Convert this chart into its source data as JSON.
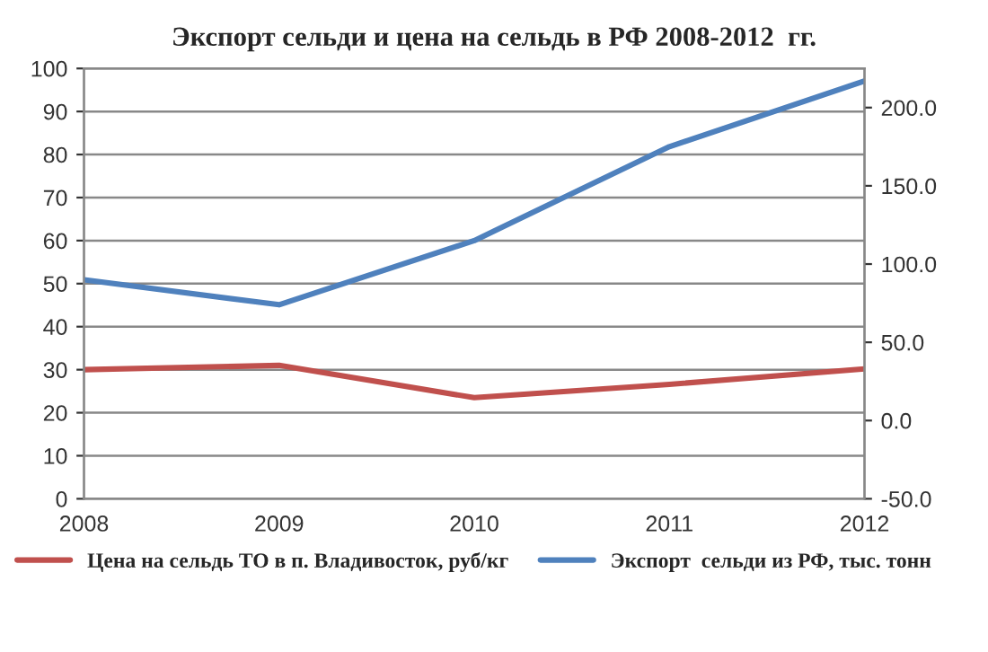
{
  "chart_data": {
    "type": "line",
    "title": "Экспорт сельди и цена на сельдь в РФ 2008-2012  гг.",
    "categories": [
      "2008",
      "2009",
      "2010",
      "2011",
      "2012"
    ],
    "series": [
      {
        "name": "Цена на сельдь ТО в п. Владивосток, руб/кг",
        "color": "#c0504d",
        "values": [
          30,
          31,
          23.5,
          26.6,
          30.2
        ]
      },
      {
        "name": "Экспорт  сельди из РФ, тыс. тонн",
        "color": "#4f81bd",
        "axis": "y2",
        "values": [
          90,
          74,
          115,
          175,
          217
        ]
      }
    ],
    "ylim": [
      0,
      100
    ],
    "yticks": [
      0,
      10,
      20,
      30,
      40,
      50,
      60,
      70,
      80,
      90,
      100
    ],
    "y2lim": [
      -50,
      225
    ],
    "y2ticks": [
      {
        "value": -50,
        "label": "-50.0"
      },
      {
        "value": 0,
        "label": "0.0"
      },
      {
        "value": 50,
        "label": "50.0"
      },
      {
        "value": 100,
        "label": "100.0"
      },
      {
        "value": 150,
        "label": "150.0"
      },
      {
        "value": 200,
        "label": "200.0"
      }
    ],
    "grid": "y",
    "legend": "bottom",
    "marker": "none",
    "line_style": "solid"
  }
}
